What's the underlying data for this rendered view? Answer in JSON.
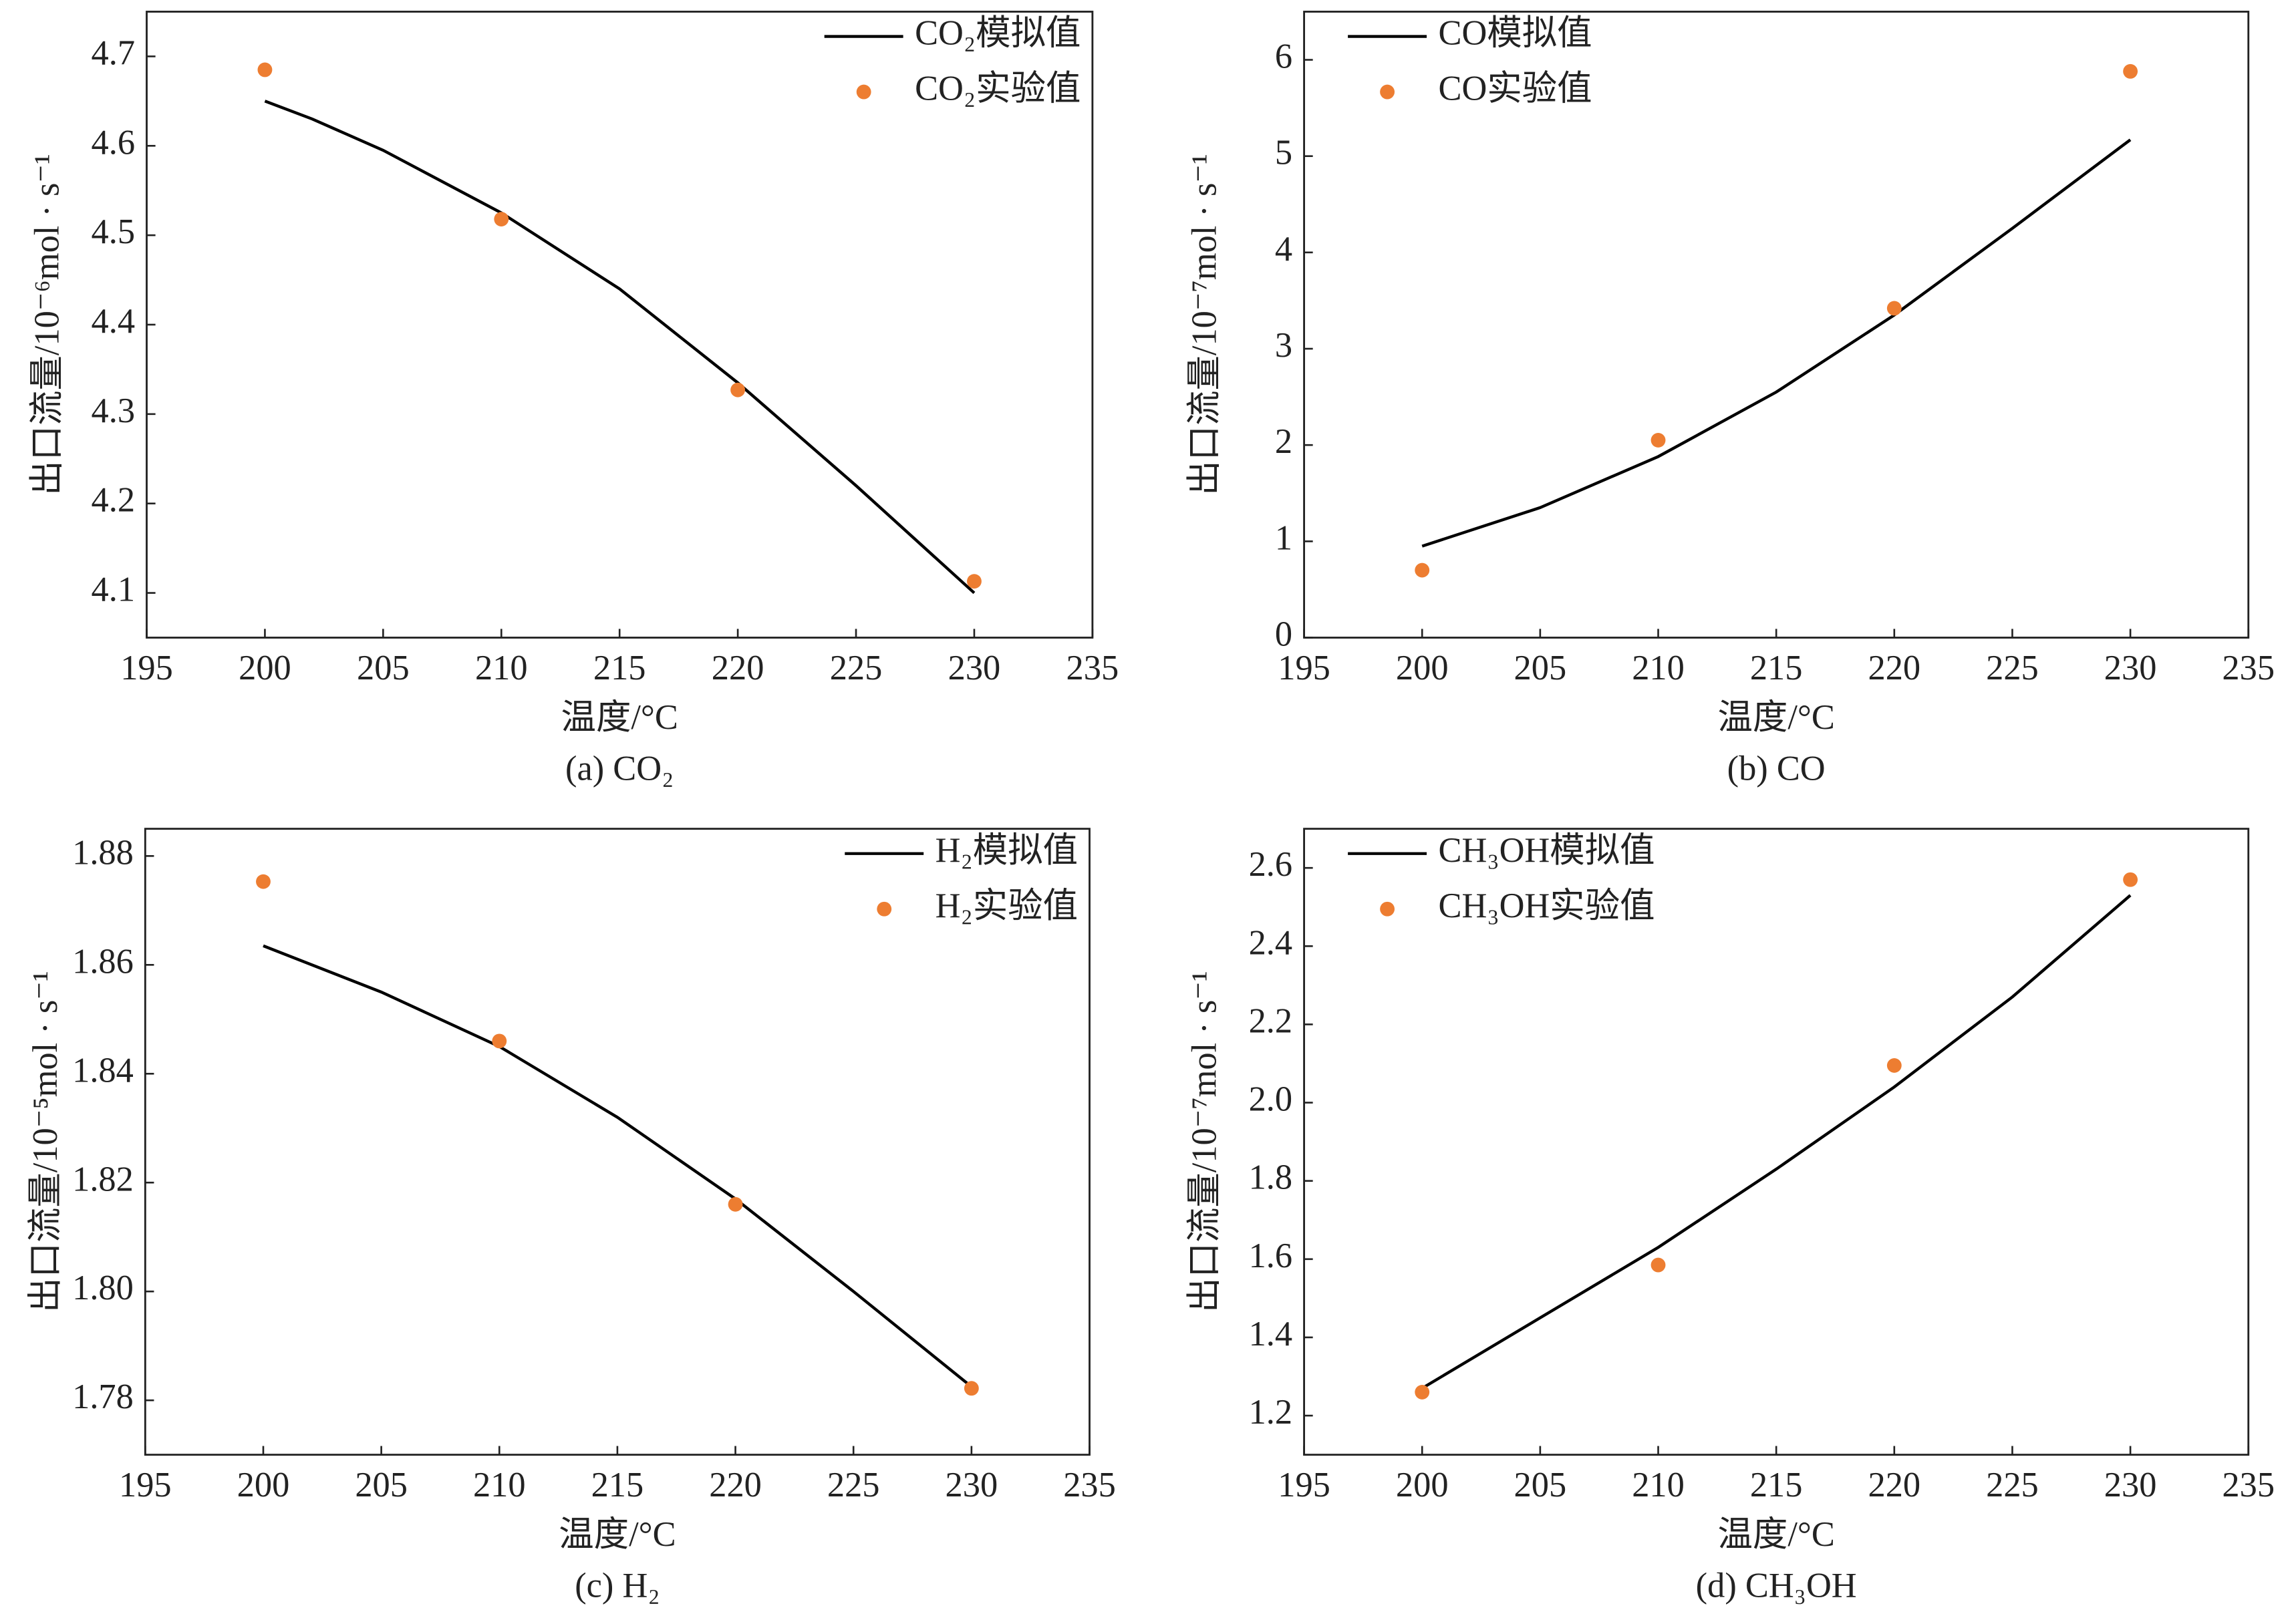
{
  "chart_data": [
    {
      "type": "line",
      "caption": "(a) CO₂",
      "xlabel": "温度/°C",
      "ylabel": "出口流量/10⁻⁶mol · s⁻¹",
      "legend": "upper right",
      "xlim": [
        195,
        235
      ],
      "xticks": [
        195,
        200,
        205,
        210,
        215,
        220,
        225,
        230,
        235
      ],
      "ylim": [
        4.05,
        4.75
      ],
      "yticks": [
        4.1,
        4.2,
        4.3,
        4.4,
        4.5,
        4.6,
        4.7
      ],
      "series": [
        {
          "name": "CO₂模拟值",
          "type": "line",
          "color": "#000000",
          "x": [
            200,
            202,
            205,
            210,
            215,
            220,
            225,
            230
          ],
          "values": [
            4.65,
            4.63,
            4.595,
            4.525,
            4.44,
            4.335,
            4.22,
            4.1
          ]
        },
        {
          "name": "CO₂实验值",
          "type": "scatter",
          "color": "#ed7d31",
          "x": [
            200,
            210,
            220,
            230
          ],
          "values": [
            4.685,
            4.518,
            4.327,
            4.113
          ]
        }
      ]
    },
    {
      "type": "line",
      "caption": "(b) CO",
      "xlabel": "温度/°C",
      "ylabel": "出口流量/10⁻⁷mol · s⁻¹",
      "legend": "upper left",
      "xlim": [
        195,
        235
      ],
      "xticks": [
        195,
        200,
        205,
        210,
        215,
        220,
        225,
        230,
        235
      ],
      "ylim": [
        0,
        6.5
      ],
      "yticks": [
        0,
        1,
        2,
        3,
        4,
        5,
        6
      ],
      "series": [
        {
          "name": "CO模拟值",
          "type": "line",
          "color": "#000000",
          "x": [
            200,
            205,
            210,
            215,
            220,
            225,
            230
          ],
          "values": [
            0.95,
            1.35,
            1.88,
            2.55,
            3.35,
            4.25,
            5.17
          ]
        },
        {
          "name": "CO实验值",
          "type": "scatter",
          "color": "#ed7d31",
          "x": [
            200,
            210,
            220,
            230
          ],
          "values": [
            0.7,
            2.05,
            3.42,
            5.88
          ]
        }
      ]
    },
    {
      "type": "line",
      "caption": "(c) H₂",
      "xlabel": "温度/°C",
      "ylabel": "出口流量/10⁻⁵mol · s⁻¹",
      "legend": "upper right",
      "xlim": [
        195,
        235
      ],
      "xticks": [
        195,
        200,
        205,
        210,
        215,
        220,
        225,
        230,
        235
      ],
      "ylim": [
        1.77,
        1.885
      ],
      "yticks": [
        1.78,
        {
          "value": 1.8,
          "label": "1.80"
        },
        1.82,
        1.84,
        1.86,
        1.88
      ],
      "series": [
        {
          "name": "H₂模拟值",
          "type": "line",
          "color": "#000000",
          "x": [
            200,
            205,
            210,
            215,
            220,
            225,
            230
          ],
          "values": [
            1.8635,
            1.855,
            1.845,
            1.832,
            1.817,
            1.8,
            1.7825
          ]
        },
        {
          "name": "H₂实验值",
          "type": "scatter",
          "color": "#ed7d31",
          "x": [
            200,
            210,
            220,
            230
          ],
          "values": [
            1.8753,
            1.846,
            1.816,
            1.7822
          ]
        }
      ]
    },
    {
      "type": "line",
      "caption": "(d) CH₃OH",
      "xlabel": "温度/°C",
      "ylabel": "出口流量/10⁻⁷mol · s⁻¹",
      "legend": "upper left",
      "xlim": [
        195,
        235
      ],
      "xticks": [
        195,
        200,
        205,
        210,
        215,
        220,
        225,
        230,
        235
      ],
      "ylim": [
        1.1,
        2.7
      ],
      "yticks": [
        1.2,
        1.4,
        1.6,
        1.8,
        {
          "value": 2,
          "label": "2.0"
        },
        2.2,
        2.4,
        2.6
      ],
      "series": [
        {
          "name": "CH₃OH模拟值",
          "type": "line",
          "color": "#000000",
          "x": [
            200,
            205,
            210,
            215,
            220,
            225,
            230
          ],
          "values": [
            1.27,
            1.45,
            1.63,
            1.83,
            2.04,
            2.27,
            2.53
          ]
        },
        {
          "name": "CH₃OH实验值",
          "type": "scatter",
          "color": "#ed7d31",
          "x": [
            200,
            210,
            220,
            230
          ],
          "values": [
            1.26,
            1.585,
            2.095,
            2.57
          ]
        }
      ]
    }
  ]
}
